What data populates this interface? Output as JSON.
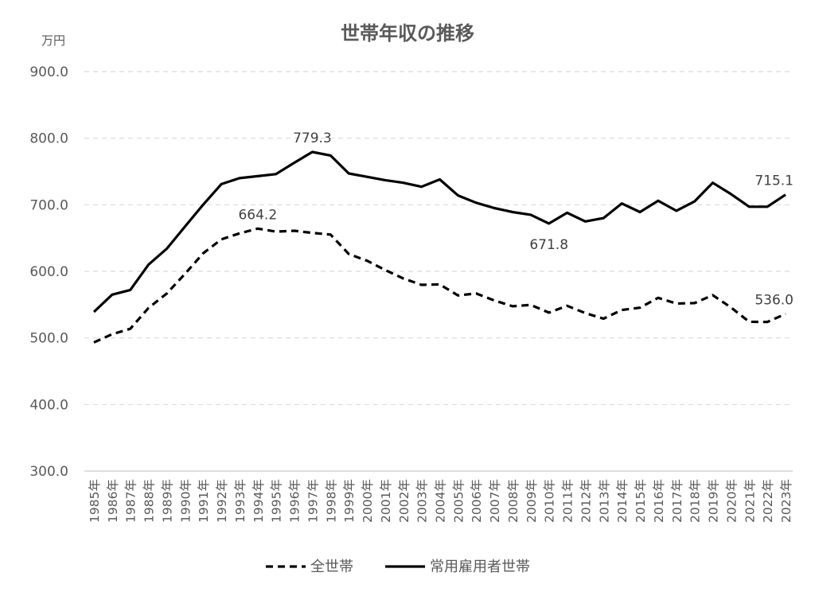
{
  "chart_data": {
    "type": "line",
    "title": "世帯年収の推移",
    "unit_label": "万円",
    "ylim": [
      300,
      900
    ],
    "yticks": [
      "900.0",
      "800.0",
      "700.0",
      "600.0",
      "500.0",
      "400.0",
      "300.0"
    ],
    "ytick_values": [
      900,
      800,
      700,
      600,
      500,
      400,
      300
    ],
    "grid": true,
    "legend_position": "bottom",
    "categories": [
      "1985年",
      "1986年",
      "1987年",
      "1988年",
      "1989年",
      "1990年",
      "1991年",
      "1992年",
      "1993年",
      "1994年",
      "1995年",
      "1996年",
      "1997年",
      "1998年",
      "1999年",
      "2000年",
      "2001年",
      "2002年",
      "2003年",
      "2004年",
      "2005年",
      "2006年",
      "2007年",
      "2008年",
      "2009年",
      "2010年",
      "2011年",
      "2012年",
      "2013年",
      "2014年",
      "2015年",
      "2016年",
      "2017年",
      "2018年",
      "2019年",
      "2020年",
      "2021年",
      "2022年",
      "2023年"
    ],
    "series": [
      {
        "name": "全世帯",
        "style": "dashed",
        "color": "#000000",
        "values": [
          493.3,
          505.6,
          513.7,
          545.0,
          566.6,
          596.0,
          627.0,
          648.0,
          657.0,
          664.2,
          659.6,
          661.0,
          657.7,
          655.2,
          626.0,
          616.0,
          602.0,
          589.3,
          579.7,
          580.4,
          563.8,
          566.8,
          556.2,
          547.5,
          549.6,
          538.0,
          548.2,
          537.2,
          528.9,
          541.9,
          545.4,
          560.2,
          551.6,
          552.3,
          564.3,
          545.7,
          524.2,
          524.0,
          536.0
        ]
      },
      {
        "name": "常用雇用者世帯",
        "style": "solid",
        "color": "#000000",
        "values": [
          539.0,
          565.0,
          572.0,
          610.0,
          634.0,
          667.0,
          700.0,
          731.0,
          740.0,
          743.0,
          746.0,
          763.0,
          779.3,
          774.0,
          747.0,
          742.0,
          737.0,
          733.0,
          727.0,
          738.0,
          714.0,
          703.0,
          695.0,
          689.0,
          685.0,
          671.8,
          688.0,
          675.0,
          680.0,
          702.0,
          689.0,
          706.0,
          691.0,
          705.0,
          733.0,
          716.0,
          697.0,
          697.0,
          715.1
        ]
      }
    ],
    "annotations": [
      {
        "series": 0,
        "index": 9,
        "text": "664.2",
        "position": "above"
      },
      {
        "series": 1,
        "index": 12,
        "text": "779.3",
        "position": "above"
      },
      {
        "series": 1,
        "index": 25,
        "text": "671.8",
        "position": "below"
      },
      {
        "series": 1,
        "index": 38,
        "text": "715.1",
        "position": "above"
      },
      {
        "series": 0,
        "index": 38,
        "text": "536.0",
        "position": "above"
      }
    ]
  }
}
